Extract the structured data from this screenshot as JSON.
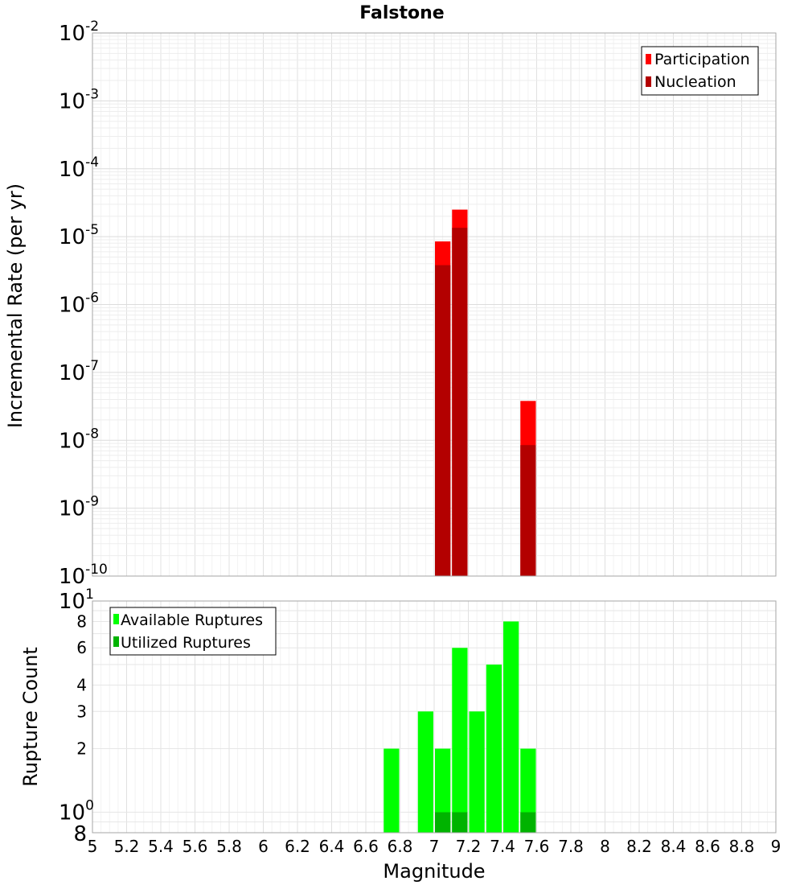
{
  "chart_data": [
    {
      "type": "bar",
      "panel": "top",
      "title": "Falstone",
      "xlabel": "",
      "ylabel": "Incremental Rate (per yr)",
      "yscale": "log",
      "ylim": [
        1e-10,
        0.01
      ],
      "xlim": [
        5,
        9
      ],
      "grid": true,
      "legend_position": "top-right",
      "y_tick_labels": [
        {
          "base": "10",
          "exp": "-10",
          "value": 1e-10
        },
        {
          "base": "10",
          "exp": "-9",
          "value": 1e-09
        },
        {
          "base": "10",
          "exp": "-8",
          "value": 1e-08
        },
        {
          "base": "10",
          "exp": "-7",
          "value": 1e-07
        },
        {
          "base": "10",
          "exp": "-6",
          "value": 1e-06
        },
        {
          "base": "10",
          "exp": "-5",
          "value": 1e-05
        },
        {
          "base": "10",
          "exp": "-4",
          "value": 0.0001
        },
        {
          "base": "10",
          "exp": "-3",
          "value": 0.001
        },
        {
          "base": "10",
          "exp": "-2",
          "value": 0.01
        }
      ],
      "series": [
        {
          "name": "Participation",
          "color": "#ff0000",
          "x": [
            7.05,
            7.15,
            7.55
          ],
          "values": [
            8.5e-06,
            2.5e-05,
            3.8e-08
          ]
        },
        {
          "name": "Nucleation",
          "color": "#b30000",
          "x": [
            7.05,
            7.15,
            7.55
          ],
          "values": [
            3.8e-06,
            1.35e-05,
            8.5e-09
          ]
        }
      ]
    },
    {
      "type": "bar",
      "panel": "bottom",
      "title": "",
      "xlabel": "Magnitude",
      "ylabel": "Rupture Count",
      "yscale": "log",
      "ylim": [
        0.8,
        10
      ],
      "xlim": [
        5,
        9
      ],
      "grid": true,
      "legend_position": "top-left",
      "y_tick_labels": [
        {
          "base": "8",
          "exp": "",
          "value": 0.8
        },
        {
          "base": "10",
          "exp": "0",
          "value": 1
        },
        {
          "base": "2",
          "exp": "",
          "value": 2
        },
        {
          "base": "3",
          "exp": "",
          "value": 3
        },
        {
          "base": "4",
          "exp": "",
          "value": 4
        },
        {
          "base": "6",
          "exp": "",
          "value": 6
        },
        {
          "base": "8",
          "exp": "",
          "value": 8
        },
        {
          "base": "10",
          "exp": "1",
          "value": 10
        }
      ],
      "x_tick_labels": [
        "5",
        "5.2",
        "5.4",
        "5.6",
        "5.8",
        "6",
        "6.2",
        "6.4",
        "6.6",
        "6.8",
        "7",
        "7.2",
        "7.4",
        "7.6",
        "7.8",
        "8",
        "8.2",
        "8.4",
        "8.6",
        "8.8",
        "9"
      ],
      "series": [
        {
          "name": "Available Ruptures",
          "color": "#00ff00",
          "x": [
            6.75,
            6.95,
            7.05,
            7.15,
            7.25,
            7.35,
            7.45,
            7.55
          ],
          "values": [
            2,
            3,
            2,
            6,
            3,
            5,
            8,
            2
          ]
        },
        {
          "name": "Utilized Ruptures",
          "color": "#00b300",
          "x": [
            7.05,
            7.15,
            7.55
          ],
          "values": [
            1,
            1,
            1
          ]
        }
      ]
    }
  ]
}
